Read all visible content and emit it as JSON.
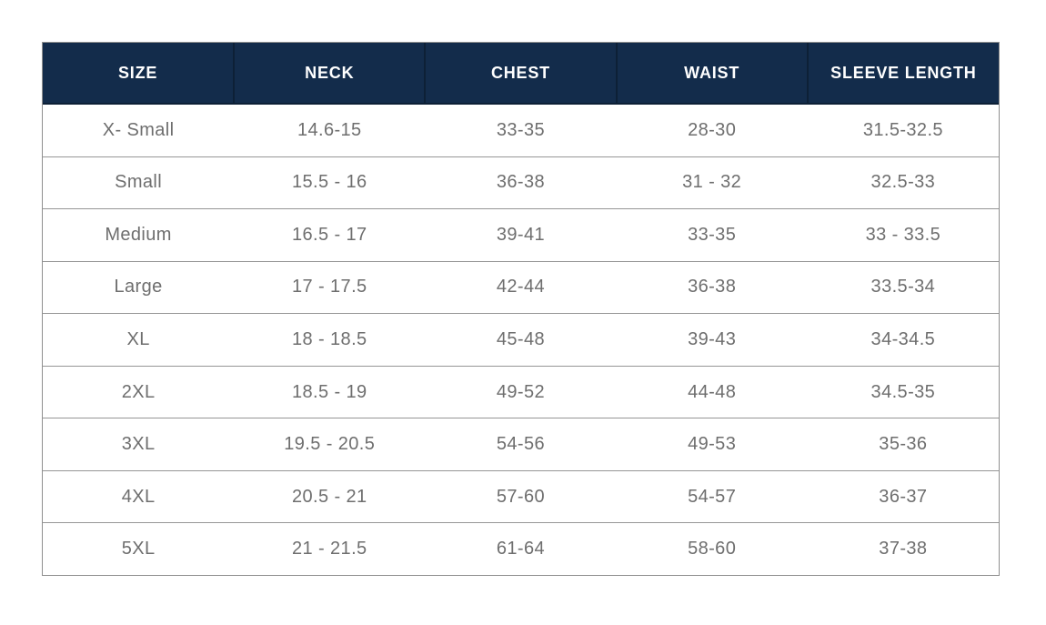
{
  "colors": {
    "header_bg": "#132c4b",
    "header_divider": "#0d2036",
    "header_text": "#ffffff",
    "body_text": "#6e6e6e",
    "table_border": "#8f8f8f",
    "row_divider": "#969696",
    "page_bg": "#ffffff"
  },
  "chart_data": {
    "type": "table",
    "title": "",
    "columns": [
      "SIZE",
      "NECK",
      "CHEST",
      "WAIST",
      "SLEEVE LENGTH"
    ],
    "rows": [
      [
        "X- Small",
        "14.6-15",
        "33-35",
        "28-30",
        "31.5-32.5"
      ],
      [
        "Small",
        "15.5 - 16",
        "36-38",
        "31 - 32",
        "32.5-33"
      ],
      [
        "Medium",
        "16.5 - 17",
        "39-41",
        "33-35",
        "33 - 33.5"
      ],
      [
        "Large",
        "17 - 17.5",
        "42-44",
        "36-38",
        "33.5-34"
      ],
      [
        "XL",
        "18 - 18.5",
        "45-48",
        "39-43",
        "34-34.5"
      ],
      [
        "2XL",
        "18.5 - 19",
        "49-52",
        "44-48",
        "34.5-35"
      ],
      [
        "3XL",
        "19.5 - 20.5",
        "54-56",
        "49-53",
        "35-36"
      ],
      [
        "4XL",
        "20.5 - 21",
        "57-60",
        "54-57",
        "36-37"
      ],
      [
        "5XL",
        "21 - 21.5",
        "61-64",
        "58-60",
        "37-38"
      ]
    ]
  }
}
